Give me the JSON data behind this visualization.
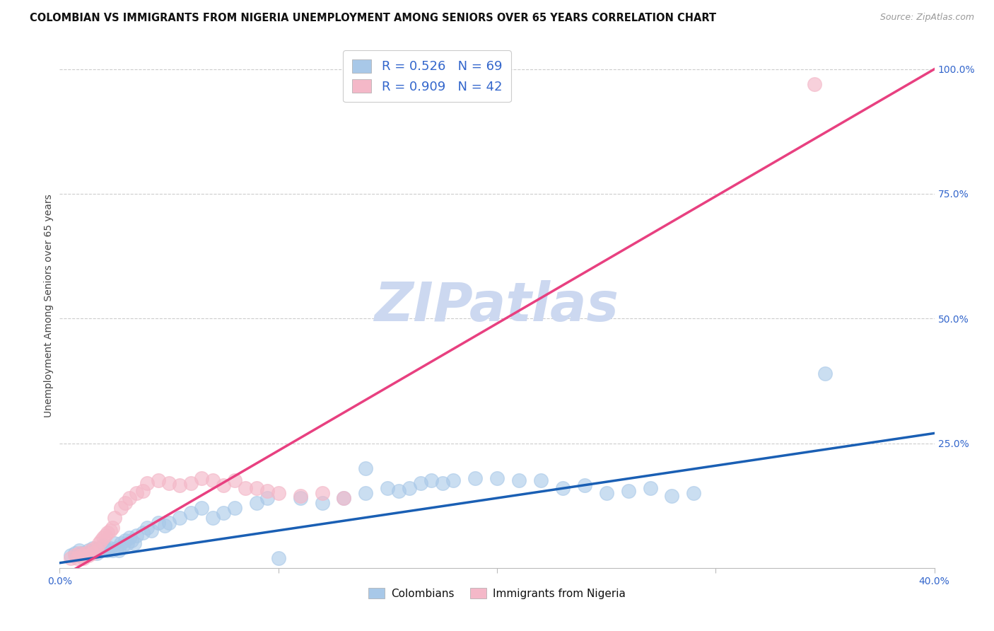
{
  "title": "COLOMBIAN VS IMMIGRANTS FROM NIGERIA UNEMPLOYMENT AMONG SENIORS OVER 65 YEARS CORRELATION CHART",
  "source": "Source: ZipAtlas.com",
  "ylabel": "Unemployment Among Seniors over 65 years",
  "xlim": [
    0.0,
    0.4
  ],
  "ylim": [
    0.0,
    1.05
  ],
  "x_ticks": [
    0.0,
    0.1,
    0.2,
    0.3,
    0.4
  ],
  "x_tick_labels": [
    "0.0%",
    "",
    "",
    "",
    "40.0%"
  ],
  "y_ticks_right": [
    0.25,
    0.5,
    0.75,
    1.0
  ],
  "y_tick_labels_right": [
    "25.0%",
    "50.0%",
    "75.0%",
    "100.0%"
  ],
  "colombian_color": "#a8c8e8",
  "nigeria_color": "#f4b8c8",
  "trendline_colombian_color": "#1a5fb4",
  "trendline_nigeria_color": "#e84080",
  "R_colombian": 0.526,
  "N_colombian": 69,
  "R_nigeria": 0.909,
  "N_nigeria": 42,
  "legend_color": "#3366cc",
  "watermark": "ZIPatlas",
  "colombian_x": [
    0.005,
    0.007,
    0.008,
    0.009,
    0.01,
    0.011,
    0.012,
    0.013,
    0.014,
    0.015,
    0.016,
    0.017,
    0.018,
    0.019,
    0.02,
    0.021,
    0.022,
    0.023,
    0.024,
    0.025,
    0.026,
    0.027,
    0.028,
    0.029,
    0.03,
    0.031,
    0.032,
    0.033,
    0.034,
    0.035,
    0.038,
    0.04,
    0.042,
    0.045,
    0.048,
    0.05,
    0.055,
    0.06,
    0.065,
    0.07,
    0.075,
    0.08,
    0.09,
    0.095,
    0.1,
    0.11,
    0.12,
    0.13,
    0.14,
    0.15,
    0.155,
    0.16,
    0.165,
    0.17,
    0.175,
    0.18,
    0.19,
    0.2,
    0.21,
    0.22,
    0.23,
    0.24,
    0.25,
    0.26,
    0.27,
    0.28,
    0.29,
    0.14,
    0.35
  ],
  "colombian_y": [
    0.025,
    0.03,
    0.025,
    0.035,
    0.03,
    0.025,
    0.03,
    0.035,
    0.03,
    0.04,
    0.035,
    0.03,
    0.04,
    0.035,
    0.045,
    0.04,
    0.035,
    0.04,
    0.035,
    0.05,
    0.04,
    0.035,
    0.05,
    0.045,
    0.055,
    0.05,
    0.06,
    0.055,
    0.05,
    0.065,
    0.07,
    0.08,
    0.075,
    0.09,
    0.085,
    0.09,
    0.1,
    0.11,
    0.12,
    0.1,
    0.11,
    0.12,
    0.13,
    0.14,
    0.02,
    0.14,
    0.13,
    0.14,
    0.15,
    0.16,
    0.155,
    0.16,
    0.17,
    0.175,
    0.17,
    0.175,
    0.18,
    0.18,
    0.175,
    0.175,
    0.16,
    0.165,
    0.15,
    0.155,
    0.16,
    0.145,
    0.15,
    0.2,
    0.39
  ],
  "nigeria_x": [
    0.005,
    0.007,
    0.008,
    0.009,
    0.01,
    0.011,
    0.012,
    0.013,
    0.014,
    0.015,
    0.016,
    0.017,
    0.018,
    0.019,
    0.02,
    0.021,
    0.022,
    0.023,
    0.024,
    0.025,
    0.028,
    0.03,
    0.032,
    0.035,
    0.038,
    0.04,
    0.045,
    0.05,
    0.055,
    0.06,
    0.065,
    0.07,
    0.075,
    0.08,
    0.085,
    0.09,
    0.095,
    0.1,
    0.11,
    0.12,
    0.13,
    0.345
  ],
  "nigeria_y": [
    0.02,
    0.025,
    0.02,
    0.03,
    0.025,
    0.02,
    0.03,
    0.025,
    0.035,
    0.03,
    0.04,
    0.035,
    0.05,
    0.055,
    0.06,
    0.065,
    0.07,
    0.075,
    0.08,
    0.1,
    0.12,
    0.13,
    0.14,
    0.15,
    0.155,
    0.17,
    0.175,
    0.17,
    0.165,
    0.17,
    0.18,
    0.175,
    0.165,
    0.175,
    0.16,
    0.16,
    0.155,
    0.15,
    0.145,
    0.15,
    0.14,
    0.97
  ],
  "background_color": "#ffffff",
  "grid_color": "#cccccc",
  "title_fontsize": 10.5,
  "ylabel_fontsize": 10,
  "tick_fontsize": 10,
  "watermark_color": "#ccd8f0",
  "watermark_fontsize": 55
}
